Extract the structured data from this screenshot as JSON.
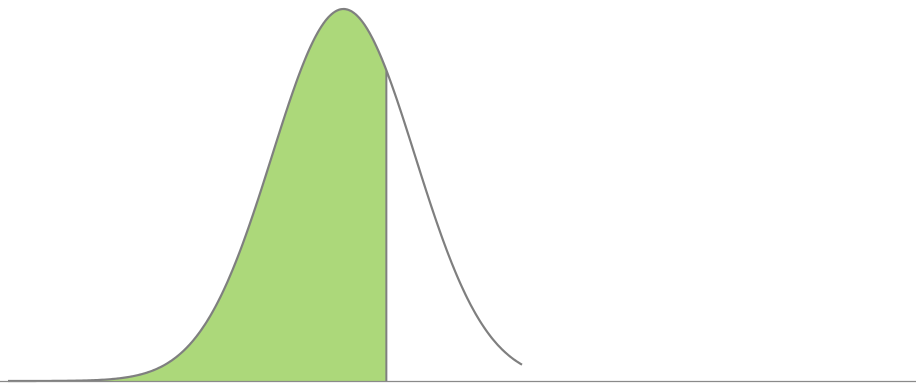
{
  "chart_data": {
    "type": "area",
    "shape": "normal-distribution-curve",
    "mean": 0,
    "std_dev": 1,
    "x_range": [
      -4.7,
      2.5
    ],
    "shaded_region": {
      "from": -4.7,
      "to": 0.6
    },
    "grid": false,
    "legend": "none",
    "colors": {
      "fill": "#acd87a",
      "curve": "#7f7f7f",
      "baseline": "#8a8a8a",
      "background": "#ffffff"
    }
  }
}
